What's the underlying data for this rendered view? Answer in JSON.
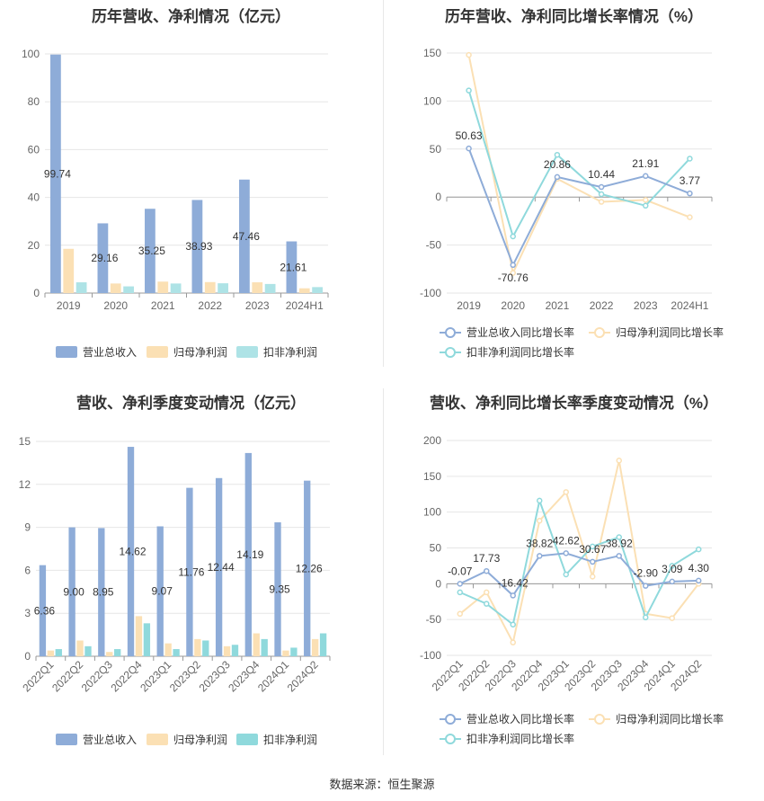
{
  "source": "数据来源：恒生聚源",
  "chart_data": [
    {
      "type": "bar",
      "title": "历年营收、净利情况（亿元）",
      "categories": [
        "2019",
        "2020",
        "2021",
        "2022",
        "2023",
        "2024H1"
      ],
      "ylim": [
        0,
        100
      ],
      "yticks": [
        0,
        20,
        40,
        60,
        80,
        100
      ],
      "grid": true,
      "legend_position": "bottom",
      "series": [
        {
          "name": "营业总收入",
          "color": "#8eacd8",
          "values": [
            99.74,
            29.16,
            35.25,
            38.93,
            47.46,
            21.61
          ],
          "labels": [
            "99.74",
            "29.16",
            "35.25",
            "38.93",
            "47.46",
            "21.61"
          ]
        },
        {
          "name": "归母净利润",
          "color": "#fbe0b4",
          "values": [
            18.5,
            4.0,
            4.8,
            4.6,
            4.5,
            2.0
          ]
        },
        {
          "name": "扣非净利润",
          "color": "#aee3e6",
          "values": [
            4.5,
            2.8,
            4.0,
            4.1,
            3.8,
            2.5
          ]
        }
      ]
    },
    {
      "type": "line",
      "title": "历年营收、净利同比增长率情况（%）",
      "categories": [
        "2019",
        "2020",
        "2021",
        "2022",
        "2023",
        "2024H1"
      ],
      "ylim": [
        -100,
        150
      ],
      "yticks": [
        -100,
        -50,
        0,
        50,
        100,
        150
      ],
      "grid": true,
      "legend_position": "bottom",
      "series": [
        {
          "name": "营业总收入同比增长率",
          "color": "#8eacd8",
          "values": [
            50.63,
            -70.76,
            20.86,
            10.44,
            21.91,
            3.77
          ],
          "labels": [
            "50.63",
            "-70.76",
            "20.86",
            "10.44",
            "21.91",
            "3.77"
          ]
        },
        {
          "name": "归母净利润同比增长率",
          "color": "#fbe0b4",
          "values": [
            148,
            -79,
            19,
            -5,
            -3,
            -21
          ]
        },
        {
          "name": "扣非净利润同比增长率",
          "color": "#8fd9dc",
          "values": [
            111,
            -41,
            44,
            3,
            -9,
            40
          ]
        }
      ]
    },
    {
      "type": "bar",
      "title": "营收、净利季度变动情况（亿元）",
      "categories": [
        "2022Q1",
        "2022Q2",
        "2022Q3",
        "2022Q4",
        "2023Q1",
        "2023Q2",
        "2023Q3",
        "2023Q4",
        "2024Q1",
        "2024Q2"
      ],
      "ylim": [
        0,
        15
      ],
      "yticks": [
        0,
        3,
        6,
        9,
        12,
        15
      ],
      "grid": true,
      "legend_position": "bottom",
      "series": [
        {
          "name": "营业总收入",
          "color": "#8eacd8",
          "values": [
            6.36,
            9.0,
            8.95,
            14.62,
            9.07,
            11.76,
            12.44,
            14.19,
            9.35,
            12.26
          ],
          "labels": [
            "6.36",
            "9.00",
            "8.95",
            "14.62",
            "9.07",
            "11.76",
            "12.44",
            "14.19",
            "9.35",
            "12.26"
          ]
        },
        {
          "name": "归母净利润",
          "color": "#fbe0b4",
          "values": [
            0.4,
            1.1,
            0.3,
            2.8,
            0.9,
            1.2,
            0.7,
            1.6,
            0.4,
            1.2
          ]
        },
        {
          "name": "扣非净利润",
          "color": "#8fd9dc",
          "values": [
            0.5,
            0.7,
            0.5,
            2.3,
            0.5,
            1.1,
            0.8,
            1.2,
            0.6,
            1.6
          ]
        }
      ]
    },
    {
      "type": "line",
      "title": "营收、净利同比增长率季度变动情况（%）",
      "categories": [
        "2022Q1",
        "2022Q2",
        "2022Q3",
        "2022Q4",
        "2023Q1",
        "2023Q2",
        "2023Q3",
        "2023Q4",
        "2024Q1",
        "2024Q2"
      ],
      "ylim": [
        -100,
        200
      ],
      "yticks": [
        -100,
        -50,
        0,
        50,
        100,
        150,
        200
      ],
      "grid": true,
      "legend_position": "bottom",
      "series": [
        {
          "name": "营业总收入同比增长率",
          "color": "#8eacd8",
          "values": [
            -0.07,
            17.73,
            -16.42,
            38.82,
            42.62,
            30.67,
            38.92,
            -2.9,
            3.09,
            4.3
          ],
          "labels": [
            "-0.07",
            "17.73",
            "-16.42",
            "38.82",
            "42.62",
            "30.67",
            "38.92",
            "-2.90",
            "3.09",
            "4.30"
          ]
        },
        {
          "name": "归母净利润同比增长率",
          "color": "#fbe0b4",
          "values": [
            -42,
            -12,
            -82,
            88,
            128,
            10,
            172,
            -42,
            -48,
            0
          ]
        },
        {
          "name": "扣非净利润同比增长率",
          "color": "#8fd9dc",
          "values": [
            -12,
            -28,
            -57,
            116,
            13,
            52,
            65,
            -47,
            25,
            48
          ]
        }
      ]
    }
  ]
}
